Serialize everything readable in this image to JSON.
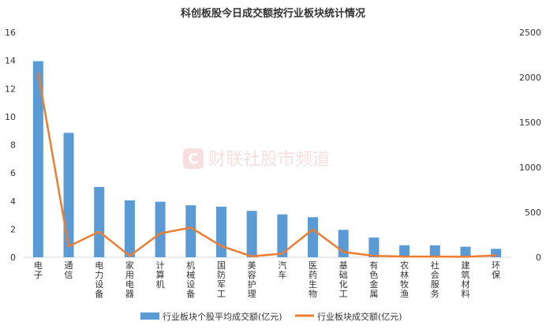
{
  "chart_data": {
    "type": "bar",
    "title": "科创板股今日成交额按行业板块统计情况",
    "categories": [
      "电子",
      "通信",
      "电力设备",
      "家用电器",
      "计算机",
      "机械设备",
      "国防军工",
      "美容护理",
      "汽车",
      "医药生物",
      "基础化工",
      "有色金属",
      "农林牧渔",
      "社会服务",
      "建筑材料",
      "环保"
    ],
    "series": [
      {
        "name": "行业板块个股平均成交额(亿元)",
        "kind": "bar",
        "axis": "left",
        "color": "#5b9bd5",
        "values": [
          13.95,
          8.85,
          5.0,
          4.05,
          3.95,
          3.7,
          3.6,
          3.3,
          3.05,
          2.85,
          1.95,
          1.4,
          0.85,
          0.85,
          0.75,
          0.6
        ]
      },
      {
        "name": "行业板块成交额(亿元)",
        "kind": "line",
        "axis": "right",
        "color": "#ed7d31",
        "values": [
          2050,
          120,
          285,
          15,
          265,
          330,
          125,
          10,
          40,
          310,
          60,
          15,
          8,
          8,
          5,
          20
        ]
      }
    ],
    "y_left": {
      "min": 0,
      "max": 16,
      "ticks": [
        "0",
        "2",
        "4",
        "6",
        "8",
        "10",
        "12",
        "14",
        "16"
      ]
    },
    "y_right": {
      "min": 0,
      "max": 2500,
      "ticks": [
        "0",
        "500",
        "1000",
        "1500",
        "2000",
        "2500"
      ]
    },
    "grid": false,
    "legend_position": "bottom",
    "watermark": "财联社股市频道"
  }
}
